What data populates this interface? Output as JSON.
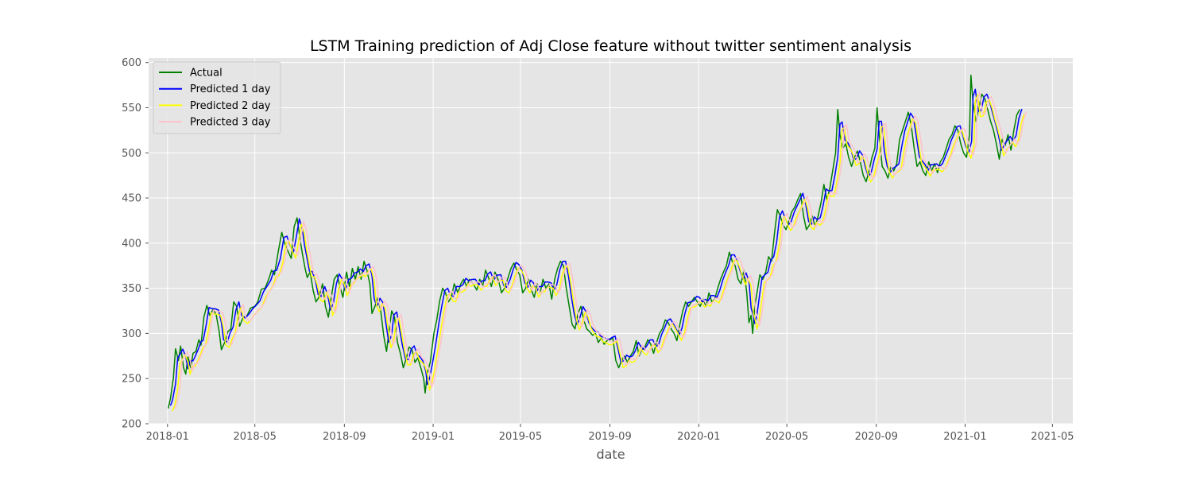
{
  "chart_data": {
    "type": "line",
    "title": "LSTM Training prediction of Adj Close feature without twitter sentiment analysis",
    "xlabel": "date",
    "ylabel": "",
    "x_range": [
      "2017-12-06",
      "2021-05-29"
    ],
    "ylim": [
      200,
      605
    ],
    "x_ticks": [
      "2018-01",
      "2018-05",
      "2018-09",
      "2019-01",
      "2019-05",
      "2019-09",
      "2020-01",
      "2020-05",
      "2020-09",
      "2021-01",
      "2021-05"
    ],
    "y_ticks": [
      200,
      250,
      300,
      350,
      400,
      450,
      500,
      550,
      600
    ],
    "grid": true,
    "legend_position": "upper-left",
    "style": {
      "background": "#e5e5e5",
      "grid_color": "#ffffff"
    },
    "actual_series": {
      "name": "Actual",
      "color": "#008000",
      "points": [
        [
          "2018-01-02",
          217
        ],
        [
          "2018-01-05",
          228
        ],
        [
          "2018-01-09",
          250
        ],
        [
          "2018-01-12",
          283
        ],
        [
          "2018-01-16",
          270
        ],
        [
          "2018-01-19",
          286
        ],
        [
          "2018-01-23",
          262
        ],
        [
          "2018-01-26",
          255
        ],
        [
          "2018-01-29",
          274
        ],
        [
          "2018-02-02",
          262
        ],
        [
          "2018-02-05",
          278
        ],
        [
          "2018-02-09",
          280
        ],
        [
          "2018-02-13",
          293
        ],
        [
          "2018-02-16",
          287
        ],
        [
          "2018-02-20",
          318
        ],
        [
          "2018-02-24",
          331
        ],
        [
          "2018-02-28",
          320
        ],
        [
          "2018-03-05",
          327
        ],
        [
          "2018-03-09",
          320
        ],
        [
          "2018-03-13",
          302
        ],
        [
          "2018-03-16",
          282
        ],
        [
          "2018-03-21",
          291
        ],
        [
          "2018-03-25",
          302
        ],
        [
          "2018-03-29",
          305
        ],
        [
          "2018-04-02",
          335
        ],
        [
          "2018-04-06",
          330
        ],
        [
          "2018-04-10",
          308
        ],
        [
          "2018-04-15",
          318
        ],
        [
          "2018-04-20",
          319
        ],
        [
          "2018-04-25",
          328
        ],
        [
          "2018-05-01",
          330
        ],
        [
          "2018-05-05",
          335
        ],
        [
          "2018-05-10",
          349
        ],
        [
          "2018-05-15",
          350
        ],
        [
          "2018-05-20",
          360
        ],
        [
          "2018-05-24",
          370
        ],
        [
          "2018-05-28",
          365
        ],
        [
          "2018-06-02",
          390
        ],
        [
          "2018-06-07",
          412
        ],
        [
          "2018-06-11",
          400
        ],
        [
          "2018-06-15",
          392
        ],
        [
          "2018-06-20",
          383
        ],
        [
          "2018-06-24",
          418
        ],
        [
          "2018-06-28",
          428
        ],
        [
          "2018-07-02",
          405
        ],
        [
          "2018-07-05",
          390
        ],
        [
          "2018-07-09",
          372
        ],
        [
          "2018-07-12",
          362
        ],
        [
          "2018-07-16",
          368
        ],
        [
          "2018-07-20",
          348
        ],
        [
          "2018-07-24",
          335
        ],
        [
          "2018-07-28",
          340
        ],
        [
          "2018-08-02",
          355
        ],
        [
          "2018-08-06",
          330
        ],
        [
          "2018-08-10",
          318
        ],
        [
          "2018-08-14",
          340
        ],
        [
          "2018-08-18",
          360
        ],
        [
          "2018-08-22",
          365
        ],
        [
          "2018-08-26",
          352
        ],
        [
          "2018-08-30",
          340
        ],
        [
          "2018-09-04",
          368
        ],
        [
          "2018-09-08",
          352
        ],
        [
          "2018-09-12",
          372
        ],
        [
          "2018-09-16",
          360
        ],
        [
          "2018-09-20",
          374
        ],
        [
          "2018-09-24",
          360
        ],
        [
          "2018-09-28",
          380
        ],
        [
          "2018-10-02",
          370
        ],
        [
          "2018-10-06",
          355
        ],
        [
          "2018-10-09",
          322
        ],
        [
          "2018-10-13",
          330
        ],
        [
          "2018-10-17",
          340
        ],
        [
          "2018-10-21",
          325
        ],
        [
          "2018-10-25",
          298
        ],
        [
          "2018-10-29",
          280
        ],
        [
          "2018-11-02",
          306
        ],
        [
          "2018-11-05",
          325
        ],
        [
          "2018-11-09",
          318
        ],
        [
          "2018-11-13",
          290
        ],
        [
          "2018-11-17",
          278
        ],
        [
          "2018-11-21",
          262
        ],
        [
          "2018-11-25",
          272
        ],
        [
          "2018-11-29",
          285
        ],
        [
          "2018-12-03",
          282
        ],
        [
          "2018-12-07",
          268
        ],
        [
          "2018-12-11",
          273
        ],
        [
          "2018-12-15",
          262
        ],
        [
          "2018-12-19",
          250
        ],
        [
          "2018-12-21",
          234
        ],
        [
          "2018-12-24",
          256
        ],
        [
          "2018-12-28",
          268
        ],
        [
          "2019-01-02",
          300
        ],
        [
          "2019-01-06",
          315
        ],
        [
          "2019-01-10",
          336
        ],
        [
          "2019-01-14",
          350
        ],
        [
          "2019-01-18",
          345
        ],
        [
          "2019-01-22",
          335
        ],
        [
          "2019-01-26",
          340
        ],
        [
          "2019-01-30",
          355
        ],
        [
          "2019-02-04",
          345
        ],
        [
          "2019-02-08",
          355
        ],
        [
          "2019-02-12",
          360
        ],
        [
          "2019-02-16",
          352
        ],
        [
          "2019-02-20",
          360
        ],
        [
          "2019-02-25",
          355
        ],
        [
          "2019-03-02",
          348
        ],
        [
          "2019-03-06",
          360
        ],
        [
          "2019-03-10",
          352
        ],
        [
          "2019-03-14",
          370
        ],
        [
          "2019-03-18",
          362
        ],
        [
          "2019-03-22",
          352
        ],
        [
          "2019-03-27",
          368
        ],
        [
          "2019-04-01",
          358
        ],
        [
          "2019-04-05",
          345
        ],
        [
          "2019-04-09",
          350
        ],
        [
          "2019-04-14",
          362
        ],
        [
          "2019-04-18",
          372
        ],
        [
          "2019-04-22",
          378
        ],
        [
          "2019-04-26",
          370
        ],
        [
          "2019-04-30",
          365
        ],
        [
          "2019-05-04",
          345
        ],
        [
          "2019-05-08",
          350
        ],
        [
          "2019-05-12",
          360
        ],
        [
          "2019-05-16",
          348
        ],
        [
          "2019-05-20",
          340
        ],
        [
          "2019-05-24",
          355
        ],
        [
          "2019-05-28",
          345
        ],
        [
          "2019-06-01",
          360
        ],
        [
          "2019-06-05",
          350
        ],
        [
          "2019-06-09",
          355
        ],
        [
          "2019-06-13",
          338
        ],
        [
          "2019-06-17",
          360
        ],
        [
          "2019-06-21",
          372
        ],
        [
          "2019-06-25",
          380
        ],
        [
          "2019-06-29",
          375
        ],
        [
          "2019-07-03",
          350
        ],
        [
          "2019-07-07",
          330
        ],
        [
          "2019-07-11",
          310
        ],
        [
          "2019-07-15",
          305
        ],
        [
          "2019-07-19",
          322
        ],
        [
          "2019-07-23",
          330
        ],
        [
          "2019-07-27",
          315
        ],
        [
          "2019-07-31",
          305
        ],
        [
          "2019-08-04",
          302
        ],
        [
          "2019-08-08",
          298
        ],
        [
          "2019-08-12",
          300
        ],
        [
          "2019-08-16",
          290
        ],
        [
          "2019-08-20",
          295
        ],
        [
          "2019-08-24",
          288
        ],
        [
          "2019-08-28",
          292
        ],
        [
          "2019-09-01",
          293
        ],
        [
          "2019-09-05",
          295
        ],
        [
          "2019-09-09",
          270
        ],
        [
          "2019-09-13",
          262
        ],
        [
          "2019-09-17",
          270
        ],
        [
          "2019-09-21",
          275
        ],
        [
          "2019-09-25",
          268
        ],
        [
          "2019-09-29",
          275
        ],
        [
          "2019-10-03",
          280
        ],
        [
          "2019-10-07",
          292
        ],
        [
          "2019-10-11",
          275
        ],
        [
          "2019-10-15",
          282
        ],
        [
          "2019-10-19",
          285
        ],
        [
          "2019-10-23",
          293
        ],
        [
          "2019-10-27",
          288
        ],
        [
          "2019-10-31",
          278
        ],
        [
          "2019-11-04",
          290
        ],
        [
          "2019-11-08",
          300
        ],
        [
          "2019-11-12",
          305
        ],
        [
          "2019-11-16",
          315
        ],
        [
          "2019-11-20",
          312
        ],
        [
          "2019-11-24",
          305
        ],
        [
          "2019-11-28",
          300
        ],
        [
          "2019-12-02",
          292
        ],
        [
          "2019-12-06",
          310
        ],
        [
          "2019-12-10",
          325
        ],
        [
          "2019-12-14",
          335
        ],
        [
          "2019-12-18",
          330
        ],
        [
          "2019-12-22",
          335
        ],
        [
          "2019-12-26",
          340
        ],
        [
          "2019-12-30",
          335
        ],
        [
          "2020-01-03",
          330
        ],
        [
          "2020-01-07",
          338
        ],
        [
          "2020-01-11",
          330
        ],
        [
          "2020-01-15",
          345
        ],
        [
          "2020-01-19",
          335
        ],
        [
          "2020-01-23",
          338
        ],
        [
          "2020-01-27",
          350
        ],
        [
          "2020-01-31",
          360
        ],
        [
          "2020-02-04",
          368
        ],
        [
          "2020-02-08",
          375
        ],
        [
          "2020-02-12",
          390
        ],
        [
          "2020-02-16",
          380
        ],
        [
          "2020-02-20",
          375
        ],
        [
          "2020-02-24",
          360
        ],
        [
          "2020-02-28",
          355
        ],
        [
          "2020-03-03",
          370
        ],
        [
          "2020-03-07",
          345
        ],
        [
          "2020-03-10",
          312
        ],
        [
          "2020-03-13",
          320
        ],
        [
          "2020-03-15",
          300
        ],
        [
          "2020-03-18",
          330
        ],
        [
          "2020-03-22",
          350
        ],
        [
          "2020-03-25",
          365
        ],
        [
          "2020-03-29",
          360
        ],
        [
          "2020-04-02",
          368
        ],
        [
          "2020-04-06",
          385
        ],
        [
          "2020-04-10",
          380
        ],
        [
          "2020-04-14",
          410
        ],
        [
          "2020-04-18",
          437
        ],
        [
          "2020-04-22",
          430
        ],
        [
          "2020-04-26",
          420
        ],
        [
          "2020-04-30",
          415
        ],
        [
          "2020-05-04",
          425
        ],
        [
          "2020-05-08",
          435
        ],
        [
          "2020-05-12",
          440
        ],
        [
          "2020-05-16",
          448
        ],
        [
          "2020-05-20",
          455
        ],
        [
          "2020-05-24",
          430
        ],
        [
          "2020-05-28",
          415
        ],
        [
          "2020-06-01",
          420
        ],
        [
          "2020-06-05",
          430
        ],
        [
          "2020-06-09",
          418
        ],
        [
          "2020-06-13",
          430
        ],
        [
          "2020-06-17",
          445
        ],
        [
          "2020-06-21",
          465
        ],
        [
          "2020-06-25",
          448
        ],
        [
          "2020-06-29",
          460
        ],
        [
          "2020-07-03",
          480
        ],
        [
          "2020-07-07",
          500
        ],
        [
          "2020-07-10",
          548
        ],
        [
          "2020-07-13",
          520
        ],
        [
          "2020-07-17",
          505
        ],
        [
          "2020-07-21",
          510
        ],
        [
          "2020-07-25",
          495
        ],
        [
          "2020-07-29",
          485
        ],
        [
          "2020-08-02",
          495
        ],
        [
          "2020-08-06",
          502
        ],
        [
          "2020-08-10",
          490
        ],
        [
          "2020-08-14",
          475
        ],
        [
          "2020-08-18",
          468
        ],
        [
          "2020-08-22",
          480
        ],
        [
          "2020-08-26",
          495
        ],
        [
          "2020-08-30",
          505
        ],
        [
          "2020-09-02",
          550
        ],
        [
          "2020-09-05",
          520
        ],
        [
          "2020-09-09",
          485
        ],
        [
          "2020-09-13",
          480
        ],
        [
          "2020-09-17",
          472
        ],
        [
          "2020-09-21",
          485
        ],
        [
          "2020-09-25",
          480
        ],
        [
          "2020-09-29",
          488
        ],
        [
          "2020-10-03",
          515
        ],
        [
          "2020-10-07",
          525
        ],
        [
          "2020-10-11",
          535
        ],
        [
          "2020-10-15",
          545
        ],
        [
          "2020-10-19",
          530
        ],
        [
          "2020-10-23",
          505
        ],
        [
          "2020-10-27",
          485
        ],
        [
          "2020-10-31",
          490
        ],
        [
          "2020-11-04",
          480
        ],
        [
          "2020-11-08",
          475
        ],
        [
          "2020-11-12",
          490
        ],
        [
          "2020-11-16",
          480
        ],
        [
          "2020-11-20",
          488
        ],
        [
          "2020-11-24",
          478
        ],
        [
          "2020-11-28",
          490
        ],
        [
          "2020-12-02",
          495
        ],
        [
          "2020-12-06",
          505
        ],
        [
          "2020-12-10",
          515
        ],
        [
          "2020-12-14",
          520
        ],
        [
          "2020-12-18",
          530
        ],
        [
          "2020-12-22",
          525
        ],
        [
          "2020-12-26",
          510
        ],
        [
          "2020-12-30",
          500
        ],
        [
          "2021-01-03",
          495
        ],
        [
          "2021-01-07",
          520
        ],
        [
          "2021-01-09",
          586
        ],
        [
          "2021-01-12",
          555
        ],
        [
          "2021-01-16",
          535
        ],
        [
          "2021-01-20",
          550
        ],
        [
          "2021-01-24",
          565
        ],
        [
          "2021-01-28",
          560
        ],
        [
          "2021-02-01",
          548
        ],
        [
          "2021-02-05",
          535
        ],
        [
          "2021-02-09",
          525
        ],
        [
          "2021-02-13",
          510
        ],
        [
          "2021-02-17",
          493
        ],
        [
          "2021-02-21",
          515
        ],
        [
          "2021-02-25",
          508
        ],
        [
          "2021-03-01",
          520
        ],
        [
          "2021-03-05",
          503
        ],
        [
          "2021-03-09",
          525
        ],
        [
          "2021-03-13",
          542
        ],
        [
          "2021-03-17",
          548
        ]
      ]
    },
    "series": [
      {
        "name": "Actual",
        "color": "#008000"
      },
      {
        "name": "Predicted 1 day",
        "color": "#0000ff",
        "lag_days": 1,
        "offset": 3
      },
      {
        "name": "Predicted 2 day",
        "color": "#ffff00",
        "lag_days": 2,
        "offset": -3
      },
      {
        "name": "Predicted 3 day",
        "color": "#ffc0cb",
        "lag_days": 3,
        "offset": 0
      }
    ]
  }
}
